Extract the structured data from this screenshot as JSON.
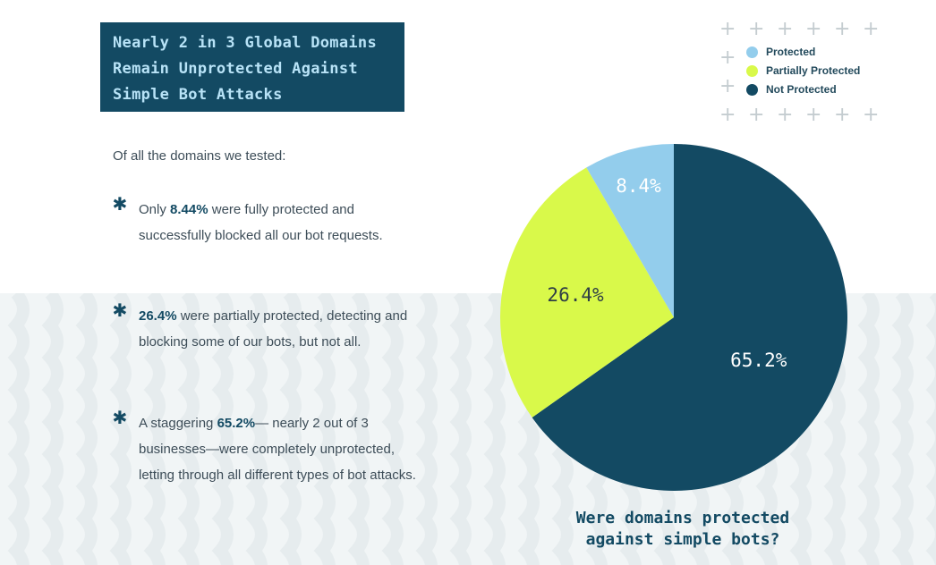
{
  "title_lines": [
    "Nearly 2 in 3 Global Domains",
    "Remain Unprotected Against",
    "Simple Bot Attacks"
  ],
  "intro": "Of all the domains we tested:",
  "bullets": [
    {
      "pre": "Only ",
      "highlight": "8.44%",
      "post": " were fully protected and successfully blocked all our bot requests."
    },
    {
      "pre": "",
      "highlight": "26.4%",
      "post": " were partially protected, detecting and blocking some of our bots, but not all."
    },
    {
      "pre": "A staggering ",
      "highlight": "65.2%",
      "post": "— nearly 2 out of 3 businesses—were completely unprotected, letting through all different types of bot attacks."
    }
  ],
  "bullet_symbol": "✱",
  "chart_data": {
    "type": "pie",
    "title": "Were domains protected against simple bots?",
    "title_lines": [
      "Were domains protected",
      "against simple bots?"
    ],
    "categories": [
      "Protected",
      "Partially Protected",
      "Not Protected"
    ],
    "values": [
      8.4,
      26.4,
      65.2
    ],
    "labels": [
      "8.4%",
      "26.4%",
      "65.2%"
    ],
    "colors": [
      "#93cdec",
      "#d9f94a",
      "#134a63"
    ],
    "label_colors": [
      "#ffffff",
      "#2f3e46",
      "#ffffff"
    ],
    "legend_position": "top-right",
    "start": "top, clockwise from Not Protected"
  }
}
